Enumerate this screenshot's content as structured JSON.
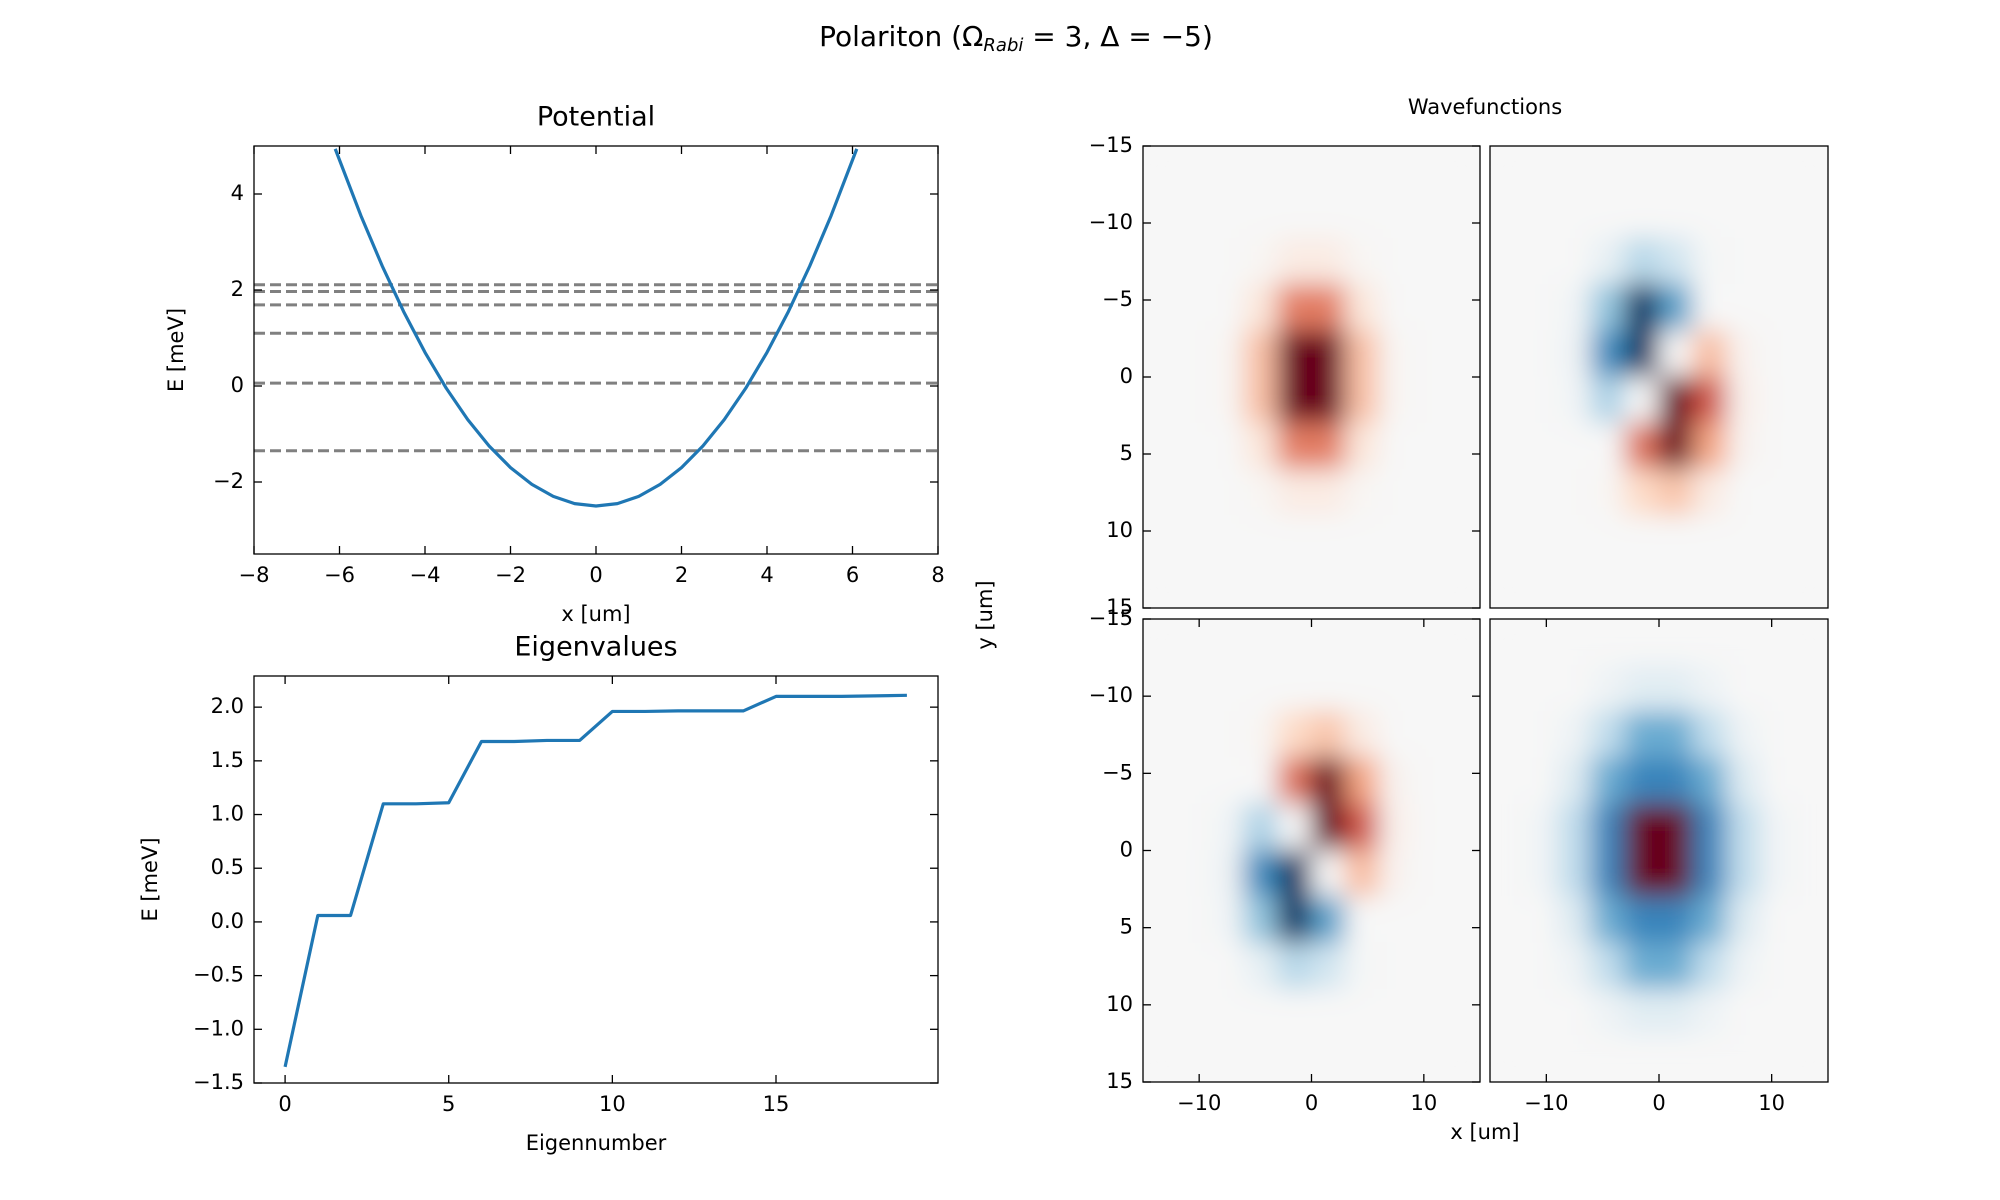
{
  "figure_title": {
    "before": "Polariton (Ω",
    "sub": "Rabi",
    "after": " = 3, Δ = −5)"
  },
  "wavefunctions": {
    "title": "Wavefunctions",
    "xlabel": "x [um]",
    "ylabel": "y [um]"
  },
  "chart_data": [
    {
      "type": "line",
      "title": "Potential",
      "xlabel": "x [um]",
      "ylabel": "E [meV]",
      "x": [
        -6.1,
        -5.5,
        -5,
        -4.5,
        -4,
        -3.5,
        -3,
        -2.5,
        -2,
        -1.5,
        -1,
        -0.5,
        0,
        0.5,
        1,
        1.5,
        2,
        2.5,
        3,
        3.5,
        4,
        4.5,
        5,
        5.5,
        6.1
      ],
      "series": [
        {
          "color": "#1f77b4",
          "values": [
            4.94,
            3.55,
            2.5,
            1.55,
            0.7,
            -0.05,
            -0.7,
            -1.25,
            -1.7,
            -2.05,
            -2.3,
            -2.45,
            -2.5,
            -2.45,
            -2.3,
            -2.05,
            -1.7,
            -1.25,
            -0.7,
            -0.05,
            0.7,
            1.55,
            2.5,
            3.55,
            4.94
          ]
        }
      ],
      "hlines": [
        -1.35,
        0.06,
        1.1,
        1.69,
        1.97,
        2.11
      ],
      "hline_color": "#808080",
      "xlim": [
        -8,
        8
      ],
      "ylim": [
        -3.5,
        5
      ],
      "xticks": [
        {
          "value": -8,
          "label": "−8"
        },
        {
          "value": -6,
          "label": "−6"
        },
        {
          "value": -4,
          "label": "−4"
        },
        {
          "value": -2,
          "label": "−2"
        },
        0,
        2,
        4,
        6,
        8
      ],
      "yticks": [
        {
          "value": -2,
          "label": "−2"
        },
        0,
        2,
        4
      ]
    },
    {
      "type": "line",
      "title": "Eigenvalues",
      "xlabel": "Eigennumber",
      "ylabel": "E [meV]",
      "x": [
        0,
        1,
        2,
        3,
        4,
        5,
        6,
        7,
        8,
        9,
        10,
        11,
        12,
        13,
        14,
        15,
        16,
        17,
        18,
        19
      ],
      "series": [
        {
          "color": "#1f77b4",
          "values": [
            -1.35,
            0.06,
            0.06,
            1.1,
            1.1,
            1.11,
            1.68,
            1.68,
            1.69,
            1.69,
            1.96,
            1.96,
            1.965,
            1.965,
            1.965,
            2.1,
            2.1,
            2.1,
            2.105,
            2.11
          ]
        }
      ],
      "xlim": [
        -0.95,
        19.95
      ],
      "ylim": [
        -1.5,
        2.29
      ],
      "xticks": [
        0,
        5,
        10,
        15
      ],
      "yticks": [
        {
          "value": -1.5,
          "label": "−1.5"
        },
        {
          "value": -1,
          "label": "−1.0"
        },
        {
          "value": -0.5,
          "label": "−0.5"
        },
        {
          "value": 0,
          "label": "0.0"
        },
        0.5,
        {
          "value": 1,
          "label": "1.0"
        },
        1.5,
        {
          "value": 2,
          "label": "2.0"
        }
      ]
    },
    {
      "type": "heatmap",
      "colormap": "RdBu_r",
      "zlim": [
        -0.6,
        0.6
      ],
      "x": [
        -13.5,
        -10.5,
        -7.5,
        -4.5,
        -1.5,
        1.5,
        4.5,
        7.5,
        10.5,
        13.5
      ],
      "y": [
        -13.5,
        -10.5,
        -7.5,
        -4.5,
        -1.5,
        1.5,
        4.5,
        7.5,
        10.5,
        13.5
      ],
      "z": [
        [
          0,
          0,
          0,
          0,
          0,
          0,
          0,
          0,
          0,
          0
        ],
        [
          0,
          0,
          0,
          0,
          0,
          0,
          0,
          0,
          0,
          0
        ],
        [
          0,
          0,
          0,
          0.01,
          0.05,
          0.05,
          0.01,
          0,
          0,
          0
        ],
        [
          0,
          0,
          0,
          0.07,
          0.31,
          0.31,
          0.07,
          0,
          0,
          0
        ],
        [
          0,
          0,
          0.01,
          0.18,
          0.75,
          0.75,
          0.18,
          0.01,
          0,
          0
        ],
        [
          0,
          0,
          0.01,
          0.18,
          0.75,
          0.75,
          0.18,
          0.01,
          0,
          0
        ],
        [
          0,
          0,
          0,
          0.07,
          0.31,
          0.31,
          0.07,
          0,
          0,
          0
        ],
        [
          0,
          0,
          0,
          0.01,
          0.05,
          0.05,
          0.01,
          0,
          0,
          0
        ],
        [
          0,
          0,
          0,
          0,
          0,
          0,
          0,
          0,
          0,
          0
        ],
        [
          0,
          0,
          0,
          0,
          0,
          0,
          0,
          0,
          0,
          0
        ]
      ],
      "xlim": [
        -15,
        15
      ],
      "ylim": [
        15,
        -15
      ],
      "yticks": [
        {
          "value": -15,
          "label": "−15"
        },
        {
          "value": -10,
          "label": "−10"
        },
        {
          "value": -5,
          "label": "−5"
        },
        0,
        5,
        10,
        15
      ]
    },
    {
      "type": "heatmap",
      "colormap": "RdBu_r",
      "zlim": [
        -0.6,
        0.6
      ],
      "x": [
        -13.5,
        -10.5,
        -7.5,
        -4.5,
        -1.5,
        1.5,
        4.5,
        7.5,
        10.5,
        13.5
      ],
      "y": [
        -13.5,
        -10.5,
        -7.5,
        -4.5,
        -1.5,
        1.5,
        4.5,
        7.5,
        10.5,
        13.5
      ],
      "z": [
        [
          0,
          0,
          0,
          0,
          0,
          0,
          0,
          0,
          0,
          0
        ],
        [
          0,
          0,
          0,
          0,
          0,
          0,
          0,
          0,
          0,
          0
        ],
        [
          0,
          0,
          0,
          -0.05,
          -0.17,
          -0.12,
          -0.01,
          0,
          0,
          0
        ],
        [
          0,
          0,
          -0.02,
          -0.24,
          -0.66,
          -0.33,
          0,
          0,
          0,
          0
        ],
        [
          0,
          0,
          -0.03,
          -0.38,
          -0.8,
          0,
          0.19,
          0.02,
          0,
          0
        ],
        [
          0,
          0,
          -0.02,
          -0.19,
          0,
          0.8,
          0.38,
          0.03,
          0,
          0
        ],
        [
          0,
          0,
          0,
          0,
          0.33,
          0.66,
          0.24,
          0.02,
          0,
          0
        ],
        [
          0,
          0,
          0,
          0.01,
          0.12,
          0.17,
          0.05,
          0,
          0,
          0
        ],
        [
          0,
          0,
          0,
          0,
          0,
          0,
          0,
          0,
          0,
          0
        ],
        [
          0,
          0,
          0,
          0,
          0,
          0,
          0,
          0,
          0,
          0
        ]
      ],
      "xlim": [
        -15,
        15
      ],
      "ylim": [
        15,
        -15
      ]
    },
    {
      "type": "heatmap",
      "colormap": "RdBu_r",
      "zlim": [
        -0.6,
        0.6
      ],
      "x": [
        -13.5,
        -10.5,
        -7.5,
        -4.5,
        -1.5,
        1.5,
        4.5,
        7.5,
        10.5,
        13.5
      ],
      "y": [
        -13.5,
        -10.5,
        -7.5,
        -4.5,
        -1.5,
        1.5,
        4.5,
        7.5,
        10.5,
        13.5
      ],
      "z": [
        [
          0,
          0,
          0,
          0,
          0,
          0,
          0,
          0,
          0,
          0
        ],
        [
          0,
          0,
          0,
          0,
          0,
          0,
          0,
          0,
          0,
          0
        ],
        [
          0,
          0,
          0,
          0.01,
          0.12,
          0.17,
          0.05,
          0,
          0,
          0
        ],
        [
          0,
          0,
          0,
          0,
          0.33,
          0.66,
          0.24,
          0.02,
          0,
          0
        ],
        [
          0,
          0,
          -0.02,
          -0.19,
          0,
          0.8,
          0.38,
          0.03,
          0,
          0
        ],
        [
          0,
          0,
          -0.03,
          -0.38,
          -0.8,
          0,
          0.19,
          0.02,
          0,
          0
        ],
        [
          0,
          0,
          -0.02,
          -0.24,
          -0.66,
          -0.33,
          0,
          0,
          0,
          0
        ],
        [
          0,
          0,
          0,
          -0.05,
          -0.17,
          -0.12,
          -0.01,
          0,
          0,
          0
        ],
        [
          0,
          0,
          0,
          0,
          0,
          0,
          0,
          0,
          0,
          0
        ],
        [
          0,
          0,
          0,
          0,
          0,
          0,
          0,
          0,
          0,
          0
        ]
      ],
      "xlim": [
        -15,
        15
      ],
      "ylim": [
        15,
        -15
      ],
      "xticks": [
        {
          "value": -10,
          "label": "−10"
        },
        0,
        10
      ],
      "yticks": [
        {
          "value": -15,
          "label": "−15"
        },
        {
          "value": -10,
          "label": "−10"
        },
        {
          "value": -5,
          "label": "−5"
        },
        0,
        5,
        10,
        15
      ]
    },
    {
      "type": "heatmap",
      "colormap": "RdBu_r",
      "zlim": [
        -0.6,
        0.6
      ],
      "x": [
        -13.5,
        -10.5,
        -7.5,
        -4.5,
        -1.5,
        1.5,
        4.5,
        7.5,
        10.5,
        13.5
      ],
      "y": [
        -13.5,
        -10.5,
        -7.5,
        -4.5,
        -1.5,
        1.5,
        4.5,
        7.5,
        10.5,
        13.5
      ],
      "z": [
        [
          0,
          0,
          0,
          0,
          0,
          0,
          0,
          0,
          0,
          0
        ],
        [
          0,
          0,
          0,
          -0.03,
          -0.07,
          -0.07,
          -0.03,
          0,
          0,
          0
        ],
        [
          0,
          0,
          -0.03,
          -0.15,
          -0.3,
          -0.3,
          -0.15,
          -0.03,
          0,
          0
        ],
        [
          0,
          0,
          -0.08,
          -0.3,
          -0.4,
          -0.4,
          -0.3,
          -0.08,
          0,
          0
        ],
        [
          0,
          -0.02,
          -0.15,
          -0.4,
          0.8,
          0.8,
          -0.4,
          -0.15,
          -0.02,
          0
        ],
        [
          0,
          -0.02,
          -0.15,
          -0.4,
          0.8,
          0.8,
          -0.4,
          -0.15,
          -0.02,
          0
        ],
        [
          0,
          0,
          -0.08,
          -0.3,
          -0.4,
          -0.4,
          -0.3,
          -0.08,
          0,
          0
        ],
        [
          0,
          0,
          -0.03,
          -0.15,
          -0.3,
          -0.3,
          -0.15,
          -0.03,
          0,
          0
        ],
        [
          0,
          0,
          0,
          -0.03,
          -0.07,
          -0.07,
          -0.03,
          0,
          0,
          0
        ],
        [
          0,
          0,
          0,
          0,
          0,
          0,
          0,
          0,
          0,
          0
        ]
      ],
      "xlim": [
        -15,
        15
      ],
      "ylim": [
        15,
        -15
      ],
      "xticks": [
        {
          "value": -10,
          "label": "−10"
        },
        0,
        10
      ]
    }
  ]
}
